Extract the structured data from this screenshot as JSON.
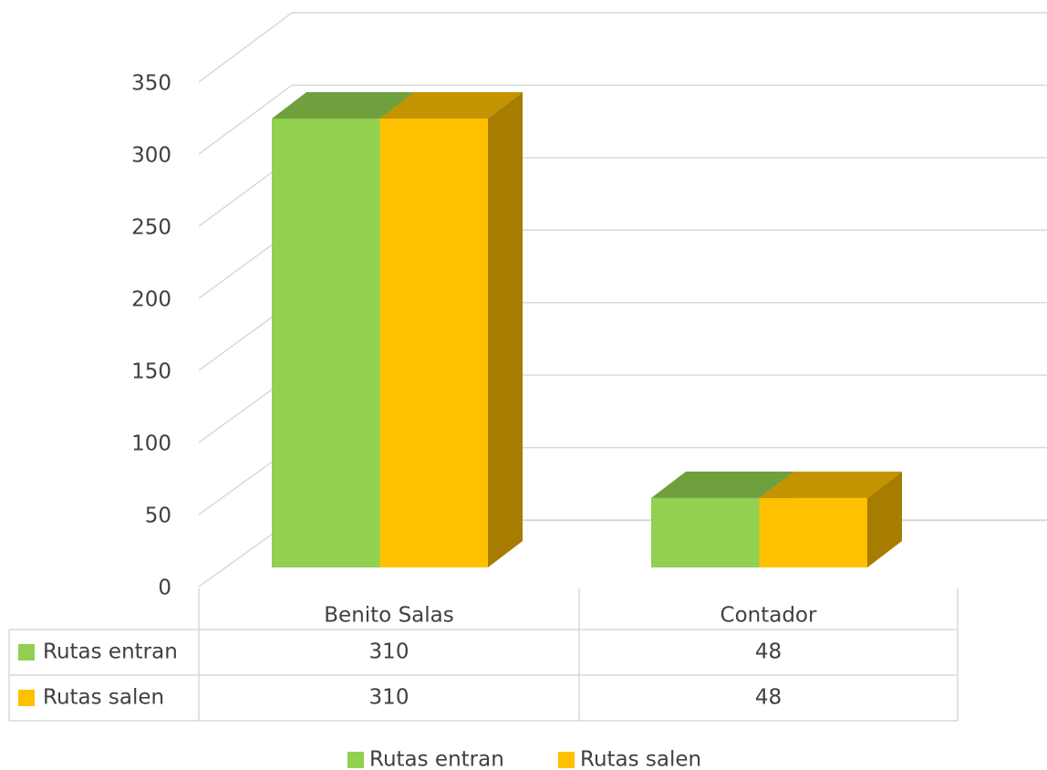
{
  "chart_data": {
    "type": "bar",
    "categories": [
      "Benito Salas",
      "Contador"
    ],
    "series": [
      {
        "name": "Rutas entran",
        "color": "#92d050",
        "values": [
          310,
          48
        ]
      },
      {
        "name": "Rutas salen",
        "color": "#ffc000",
        "values": [
          310,
          48
        ]
      }
    ],
    "ylim": [
      0,
      350
    ],
    "yticks": [
      0,
      50,
      100,
      150,
      200,
      250,
      300,
      350
    ],
    "grid": true,
    "data_table": true,
    "legend": "bottom"
  }
}
